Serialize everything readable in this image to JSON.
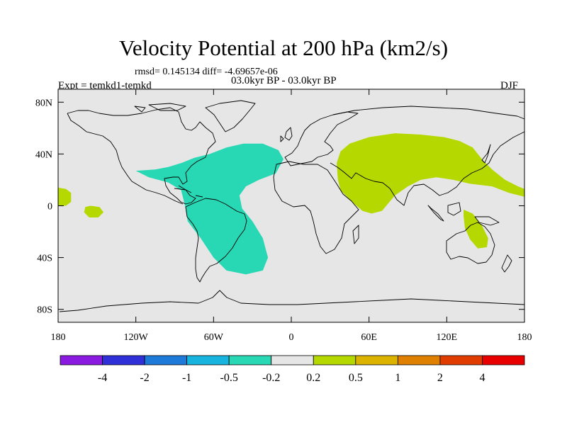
{
  "title": "Velocity Potential at 200 hPa (km2/s)",
  "stats": "rmsd= 0.145134 diff= -4.69657e-06",
  "period": "03.0kyr BP - 03.0kyr BP",
  "experiment": "Expt = temkd1-temkd",
  "season": "DJF",
  "map": {
    "background_color": "#e6e6e6",
    "lat_ticks": [
      {
        "lat": 80,
        "label": "80N"
      },
      {
        "lat": 40,
        "label": "40N"
      },
      {
        "lat": 0,
        "label": "0"
      },
      {
        "lat": -40,
        "label": "40S"
      },
      {
        "lat": -80,
        "label": "80S"
      }
    ],
    "lon_ticks": [
      {
        "lon": -180,
        "label": "180"
      },
      {
        "lon": -120,
        "label": "120W"
      },
      {
        "lon": -60,
        "label": "60W"
      },
      {
        "lon": 0,
        "label": "0"
      },
      {
        "lon": 60,
        "label": "60E"
      },
      {
        "lon": 120,
        "label": "120E"
      },
      {
        "lon": 180,
        "label": "180"
      }
    ],
    "anomaly_regions": [
      {
        "name": "atlantic-negative-lobe",
        "level": "-0.5 to -0.2",
        "color": "#28d8b4",
        "polygon": [
          [
            -120,
            27
          ],
          [
            -105,
            28
          ],
          [
            -95,
            30
          ],
          [
            -85,
            33
          ],
          [
            -75,
            37
          ],
          [
            -63,
            40
          ],
          [
            -50,
            45
          ],
          [
            -37,
            48
          ],
          [
            -22,
            48
          ],
          [
            -10,
            43
          ],
          [
            -6,
            36
          ],
          [
            -12,
            25
          ],
          [
            -25,
            20
          ],
          [
            -35,
            15
          ],
          [
            -40,
            8
          ],
          [
            -38,
            -2
          ],
          [
            -30,
            -12
          ],
          [
            -22,
            -25
          ],
          [
            -18,
            -40
          ],
          [
            -22,
            -50
          ],
          [
            -35,
            -53
          ],
          [
            -50,
            -50
          ],
          [
            -60,
            -40
          ],
          [
            -70,
            -25
          ],
          [
            -80,
            -12
          ],
          [
            -82,
            0
          ],
          [
            -85,
            12
          ],
          [
            -95,
            18
          ],
          [
            -110,
            22
          ]
        ]
      },
      {
        "name": "south-asia-pacific-positive-lobe",
        "level": "0.2 to 0.5",
        "color": "#b4d800",
        "polygon": [
          [
            36,
            20
          ],
          [
            35,
            33
          ],
          [
            38,
            42
          ],
          [
            45,
            48
          ],
          [
            60,
            53
          ],
          [
            80,
            56
          ],
          [
            100,
            55
          ],
          [
            118,
            53
          ],
          [
            130,
            50
          ],
          [
            140,
            45
          ],
          [
            148,
            35
          ],
          [
            155,
            28
          ],
          [
            165,
            20
          ],
          [
            175,
            15
          ],
          [
            180,
            13
          ],
          [
            180,
            7
          ],
          [
            168,
            10
          ],
          [
            155,
            15
          ],
          [
            138,
            17
          ],
          [
            125,
            20
          ],
          [
            112,
            22
          ],
          [
            100,
            20
          ],
          [
            90,
            15
          ],
          [
            80,
            8
          ],
          [
            75,
            2
          ],
          [
            70,
            -4
          ],
          [
            62,
            -6
          ],
          [
            55,
            -4
          ],
          [
            48,
            2
          ],
          [
            42,
            8
          ],
          [
            38,
            12
          ]
        ]
      },
      {
        "name": "australia-positive-patch",
        "level": "0.2 to 0.5",
        "color": "#b4d800",
        "polygon": [
          [
            133,
            -3
          ],
          [
            140,
            -6
          ],
          [
            147,
            -15
          ],
          [
            152,
            -25
          ],
          [
            151,
            -32
          ],
          [
            144,
            -33
          ],
          [
            138,
            -26
          ],
          [
            134,
            -17
          ],
          [
            133,
            -8
          ]
        ]
      },
      {
        "name": "dateline-positive-patch",
        "level": "0.2 to 0.5",
        "color": "#b4d800",
        "polygon": [
          [
            -180,
            14
          ],
          [
            -174,
            13
          ],
          [
            -170,
            10
          ],
          [
            -170,
            3
          ],
          [
            -174,
            0
          ],
          [
            -180,
            0
          ]
        ]
      },
      {
        "name": "central-pacific-positive-patch",
        "level": "0.2 to 0.5",
        "color": "#b4d800",
        "polygon": [
          [
            -155,
            0
          ],
          [
            -148,
            -1
          ],
          [
            -145,
            -5
          ],
          [
            -149,
            -9
          ],
          [
            -156,
            -9
          ],
          [
            -160,
            -5
          ],
          [
            -159,
            -1
          ]
        ]
      }
    ]
  },
  "colorbar": {
    "boxes": [
      "#8b1ae0",
      "#3030d8",
      "#1e7ad8",
      "#18b4e0",
      "#28d8b4",
      "#e6e6e6",
      "#b4d800",
      "#dcb400",
      "#e08000",
      "#e03c00",
      "#e80000"
    ],
    "labels": [
      "-4",
      "-2",
      "-1",
      "-0.5",
      "-0.2",
      "0.2",
      "0.5",
      "1",
      "2",
      "4"
    ]
  }
}
